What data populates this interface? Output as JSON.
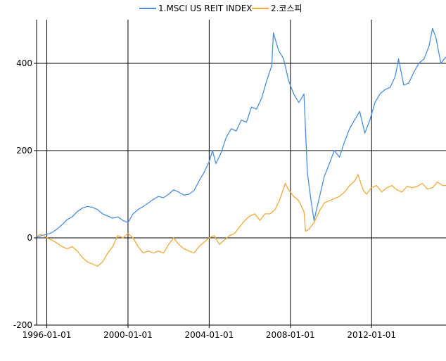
{
  "chart_data": {
    "type": "line",
    "title": "",
    "xlabel": "",
    "ylabel": "",
    "x_axis": {
      "type": "date",
      "range": [
        "1995-07-01",
        "2015-09-01"
      ],
      "ticks": [
        "1996-01-01",
        "2000-01-01",
        "2004-01-01",
        "2008-01-01",
        "2012-01-01"
      ]
    },
    "y_axis": {
      "range": [
        -200,
        500
      ],
      "ticks": [
        -200,
        0,
        200,
        400
      ]
    },
    "grid": true,
    "legend_position": "top-center",
    "series": [
      {
        "name": "1.MSCI US REIT INDEX",
        "color": "#4a8ee3",
        "points": [
          [
            "1995-07-01",
            2
          ],
          [
            "1995-10-01",
            5
          ],
          [
            "1996-01-01",
            8
          ],
          [
            "1996-04-01",
            12
          ],
          [
            "1996-07-01",
            20
          ],
          [
            "1996-10-01",
            30
          ],
          [
            "1997-01-01",
            42
          ],
          [
            "1997-04-01",
            48
          ],
          [
            "1997-07-01",
            60
          ],
          [
            "1997-10-01",
            68
          ],
          [
            "1998-01-01",
            72
          ],
          [
            "1998-04-01",
            70
          ],
          [
            "1998-07-01",
            65
          ],
          [
            "1998-10-01",
            55
          ],
          [
            "1999-01-01",
            50
          ],
          [
            "1999-04-01",
            45
          ],
          [
            "1999-07-01",
            48
          ],
          [
            "1999-10-01",
            40
          ],
          [
            "2000-01-01",
            35
          ],
          [
            "2000-04-01",
            55
          ],
          [
            "2000-07-01",
            65
          ],
          [
            "2000-10-01",
            72
          ],
          [
            "2001-01-01",
            80
          ],
          [
            "2001-04-01",
            88
          ],
          [
            "2001-07-01",
            95
          ],
          [
            "2001-10-01",
            92
          ],
          [
            "2002-01-01",
            100
          ],
          [
            "2002-04-01",
            110
          ],
          [
            "2002-07-01",
            105
          ],
          [
            "2002-10-01",
            98
          ],
          [
            "2003-01-01",
            100
          ],
          [
            "2003-04-01",
            108
          ],
          [
            "2003-07-01",
            130
          ],
          [
            "2003-10-01",
            150
          ],
          [
            "2004-01-01",
            175
          ],
          [
            "2004-03-01",
            200
          ],
          [
            "2004-05-01",
            170
          ],
          [
            "2004-08-01",
            195
          ],
          [
            "2004-11-01",
            230
          ],
          [
            "2005-02-01",
            250
          ],
          [
            "2005-05-01",
            245
          ],
          [
            "2005-08-01",
            270
          ],
          [
            "2005-11-01",
            265
          ],
          [
            "2006-02-01",
            300
          ],
          [
            "2006-05-01",
            295
          ],
          [
            "2006-08-01",
            320
          ],
          [
            "2006-11-01",
            360
          ],
          [
            "2007-02-01",
            395
          ],
          [
            "2007-03-01",
            470
          ],
          [
            "2007-06-01",
            430
          ],
          [
            "2007-09-01",
            410
          ],
          [
            "2007-12-01",
            360
          ],
          [
            "2008-03-01",
            330
          ],
          [
            "2008-06-01",
            310
          ],
          [
            "2008-09-01",
            330
          ],
          [
            "2008-11-01",
            150
          ],
          [
            "2009-01-01",
            90
          ],
          [
            "2009-03-01",
            40
          ],
          [
            "2009-06-01",
            90
          ],
          [
            "2009-09-01",
            140
          ],
          [
            "2009-12-01",
            170
          ],
          [
            "2010-03-01",
            200
          ],
          [
            "2010-06-01",
            185
          ],
          [
            "2010-09-01",
            220
          ],
          [
            "2010-12-01",
            250
          ],
          [
            "2011-03-01",
            270
          ],
          [
            "2011-06-01",
            290
          ],
          [
            "2011-09-01",
            240
          ],
          [
            "2011-12-01",
            270
          ],
          [
            "2012-03-01",
            310
          ],
          [
            "2012-06-01",
            330
          ],
          [
            "2012-09-01",
            340
          ],
          [
            "2012-12-01",
            345
          ],
          [
            "2013-03-01",
            370
          ],
          [
            "2013-05-01",
            410
          ],
          [
            "2013-08-01",
            350
          ],
          [
            "2013-11-01",
            355
          ],
          [
            "2014-02-01",
            380
          ],
          [
            "2014-05-01",
            400
          ],
          [
            "2014-08-01",
            410
          ],
          [
            "2014-11-01",
            440
          ],
          [
            "2015-01-01",
            480
          ],
          [
            "2015-03-01",
            460
          ],
          [
            "2015-06-01",
            400
          ],
          [
            "2015-09-01",
            415
          ]
        ]
      },
      {
        "name": "2.코스피",
        "color": "#f2a93b",
        "points": [
          [
            "1995-07-01",
            5
          ],
          [
            "1995-10-01",
            8
          ],
          [
            "1996-01-01",
            0
          ],
          [
            "1996-04-01",
            -5
          ],
          [
            "1996-07-01",
            -12
          ],
          [
            "1996-10-01",
            -20
          ],
          [
            "1997-01-01",
            -25
          ],
          [
            "1997-04-01",
            -20
          ],
          [
            "1997-07-01",
            -30
          ],
          [
            "1997-10-01",
            -45
          ],
          [
            "1998-01-01",
            -55
          ],
          [
            "1998-04-01",
            -60
          ],
          [
            "1998-07-01",
            -65
          ],
          [
            "1998-10-01",
            -55
          ],
          [
            "1999-01-01",
            -35
          ],
          [
            "1999-04-01",
            -20
          ],
          [
            "1999-07-01",
            5
          ],
          [
            "1999-10-01",
            0
          ],
          [
            "2000-01-01",
            10
          ],
          [
            "2000-04-01",
            0
          ],
          [
            "2000-07-01",
            -20
          ],
          [
            "2000-10-01",
            -35
          ],
          [
            "2001-01-01",
            -30
          ],
          [
            "2001-04-01",
            -35
          ],
          [
            "2001-07-01",
            -30
          ],
          [
            "2001-10-01",
            -35
          ],
          [
            "2002-01-01",
            -15
          ],
          [
            "2002-04-01",
            0
          ],
          [
            "2002-07-01",
            -15
          ],
          [
            "2002-10-01",
            -25
          ],
          [
            "2003-01-01",
            -30
          ],
          [
            "2003-04-01",
            -35
          ],
          [
            "2003-07-01",
            -20
          ],
          [
            "2003-10-01",
            -10
          ],
          [
            "2004-01-01",
            0
          ],
          [
            "2004-04-01",
            5
          ],
          [
            "2004-07-01",
            -15
          ],
          [
            "2004-10-01",
            -5
          ],
          [
            "2005-01-01",
            5
          ],
          [
            "2005-04-01",
            10
          ],
          [
            "2005-07-01",
            25
          ],
          [
            "2005-10-01",
            40
          ],
          [
            "2006-01-01",
            50
          ],
          [
            "2006-04-01",
            55
          ],
          [
            "2006-07-01",
            40
          ],
          [
            "2006-10-01",
            55
          ],
          [
            "2007-01-01",
            55
          ],
          [
            "2007-04-01",
            65
          ],
          [
            "2007-07-01",
            90
          ],
          [
            "2007-10-01",
            125
          ],
          [
            "2007-12-01",
            110
          ],
          [
            "2008-03-01",
            95
          ],
          [
            "2008-06-01",
            85
          ],
          [
            "2008-09-01",
            60
          ],
          [
            "2008-10-01",
            15
          ],
          [
            "2008-12-01",
            20
          ],
          [
            "2009-03-01",
            35
          ],
          [
            "2009-06-01",
            60
          ],
          [
            "2009-09-01",
            80
          ],
          [
            "2009-12-01",
            85
          ],
          [
            "2010-03-01",
            90
          ],
          [
            "2010-06-01",
            95
          ],
          [
            "2010-09-01",
            105
          ],
          [
            "2010-12-01",
            120
          ],
          [
            "2011-03-01",
            130
          ],
          [
            "2011-05-01",
            145
          ],
          [
            "2011-08-01",
            110
          ],
          [
            "2011-10-01",
            100
          ],
          [
            "2012-01-01",
            115
          ],
          [
            "2012-04-01",
            120
          ],
          [
            "2012-07-01",
            105
          ],
          [
            "2012-10-01",
            115
          ],
          [
            "2013-01-01",
            120
          ],
          [
            "2013-04-01",
            110
          ],
          [
            "2013-07-01",
            105
          ],
          [
            "2013-10-01",
            118
          ],
          [
            "2014-01-01",
            115
          ],
          [
            "2014-04-01",
            118
          ],
          [
            "2014-07-01",
            125
          ],
          [
            "2014-10-01",
            112
          ],
          [
            "2015-01-01",
            115
          ],
          [
            "2015-04-01",
            128
          ],
          [
            "2015-07-01",
            120
          ],
          [
            "2015-09-01",
            120
          ]
        ]
      }
    ]
  }
}
